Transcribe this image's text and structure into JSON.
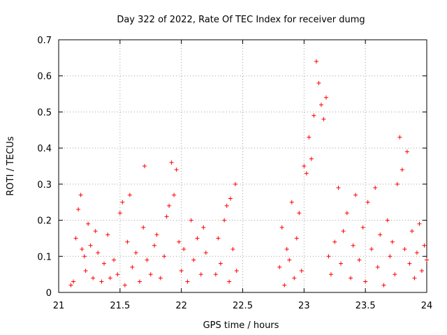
{
  "chart_data": {
    "type": "scatter",
    "title": "Day 322 of 2022, Rate Of TEC Index for receiver dumg",
    "xlabel": "GPS time / hours",
    "ylabel": "ROTI / TECUs",
    "xlim": [
      21,
      24
    ],
    "ylim": [
      0,
      0.7
    ],
    "xticks": [
      21,
      21.5,
      22,
      22.5,
      23,
      23.5,
      24
    ],
    "xtick_labels": [
      "21",
      "21.5",
      "22",
      "22.5",
      "23",
      "23.5",
      "24"
    ],
    "yticks": [
      0,
      0.1,
      0.2,
      0.3,
      0.4,
      0.5,
      0.6,
      0.7
    ],
    "ytick_labels": [
      "0",
      "0.1",
      "0.2",
      "0.3",
      "0.4",
      "0.5",
      "0.6",
      "0.7"
    ],
    "grid": true,
    "marker": "+",
    "color": "#ff0000",
    "series": [
      {
        "name": "ROTI",
        "points": [
          [
            21.1,
            0.02
          ],
          [
            21.12,
            0.03
          ],
          [
            21.14,
            0.15
          ],
          [
            21.16,
            0.23
          ],
          [
            21.18,
            0.27
          ],
          [
            21.19,
            0.12
          ],
          [
            21.21,
            0.1
          ],
          [
            21.22,
            0.06
          ],
          [
            21.24,
            0.19
          ],
          [
            21.26,
            0.13
          ],
          [
            21.28,
            0.04
          ],
          [
            21.3,
            0.17
          ],
          [
            21.32,
            0.11
          ],
          [
            21.35,
            0.03
          ],
          [
            21.37,
            0.08
          ],
          [
            21.4,
            0.16
          ],
          [
            21.42,
            0.04
          ],
          [
            21.45,
            0.09
          ],
          [
            21.48,
            0.05
          ],
          [
            21.5,
            0.22
          ],
          [
            21.52,
            0.25
          ],
          [
            21.54,
            0.02
          ],
          [
            21.56,
            0.14
          ],
          [
            21.58,
            0.27
          ],
          [
            21.6,
            0.07
          ],
          [
            21.63,
            0.11
          ],
          [
            21.66,
            0.03
          ],
          [
            21.69,
            0.18
          ],
          [
            21.7,
            0.35
          ],
          [
            21.72,
            0.09
          ],
          [
            21.75,
            0.05
          ],
          [
            21.78,
            0.13
          ],
          [
            21.8,
            0.16
          ],
          [
            21.83,
            0.04
          ],
          [
            21.86,
            0.1
          ],
          [
            21.88,
            0.21
          ],
          [
            21.9,
            0.24
          ],
          [
            21.92,
            0.36
          ],
          [
            21.94,
            0.27
          ],
          [
            21.96,
            0.34
          ],
          [
            21.98,
            0.14
          ],
          [
            22.0,
            0.06
          ],
          [
            22.02,
            0.12
          ],
          [
            22.05,
            0.03
          ],
          [
            22.08,
            0.2
          ],
          [
            22.1,
            0.09
          ],
          [
            22.13,
            0.15
          ],
          [
            22.16,
            0.05
          ],
          [
            22.18,
            0.18
          ],
          [
            22.2,
            0.11
          ],
          [
            22.28,
            0.05
          ],
          [
            22.3,
            0.15
          ],
          [
            22.32,
            0.08
          ],
          [
            22.35,
            0.2
          ],
          [
            22.37,
            0.24
          ],
          [
            22.39,
            0.03
          ],
          [
            22.4,
            0.26
          ],
          [
            22.42,
            0.12
          ],
          [
            22.44,
            0.3
          ],
          [
            22.45,
            0.06
          ],
          [
            22.8,
            0.07
          ],
          [
            22.82,
            0.18
          ],
          [
            22.84,
            0.02
          ],
          [
            22.86,
            0.12
          ],
          [
            22.88,
            0.09
          ],
          [
            22.9,
            0.25
          ],
          [
            22.92,
            0.04
          ],
          [
            22.94,
            0.15
          ],
          [
            22.96,
            0.22
          ],
          [
            22.98,
            0.06
          ],
          [
            23.0,
            0.35
          ],
          [
            23.02,
            0.33
          ],
          [
            23.04,
            0.43
          ],
          [
            23.06,
            0.37
          ],
          [
            23.08,
            0.49
          ],
          [
            23.1,
            0.64
          ],
          [
            23.12,
            0.58
          ],
          [
            23.14,
            0.52
          ],
          [
            23.16,
            0.48
          ],
          [
            23.18,
            0.54
          ],
          [
            23.2,
            0.1
          ],
          [
            23.22,
            0.05
          ],
          [
            23.25,
            0.14
          ],
          [
            23.28,
            0.29
          ],
          [
            23.3,
            0.08
          ],
          [
            23.32,
            0.17
          ],
          [
            23.35,
            0.22
          ],
          [
            23.38,
            0.04
          ],
          [
            23.4,
            0.13
          ],
          [
            23.42,
            0.27
          ],
          [
            23.45,
            0.09
          ],
          [
            23.48,
            0.18
          ],
          [
            23.5,
            0.03
          ],
          [
            23.52,
            0.25
          ],
          [
            23.55,
            0.12
          ],
          [
            23.58,
            0.29
          ],
          [
            23.6,
            0.07
          ],
          [
            23.62,
            0.16
          ],
          [
            23.65,
            0.02
          ],
          [
            23.68,
            0.2
          ],
          [
            23.7,
            0.1
          ],
          [
            23.72,
            0.14
          ],
          [
            23.74,
            0.05
          ],
          [
            23.76,
            0.3
          ],
          [
            23.78,
            0.43
          ],
          [
            23.8,
            0.34
          ],
          [
            23.82,
            0.12
          ],
          [
            23.84,
            0.39
          ],
          [
            23.86,
            0.08
          ],
          [
            23.88,
            0.17
          ],
          [
            23.9,
            0.04
          ],
          [
            23.92,
            0.11
          ],
          [
            23.94,
            0.19
          ],
          [
            23.96,
            0.06
          ],
          [
            23.98,
            0.13
          ],
          [
            24.0,
            0.09
          ]
        ]
      }
    ]
  }
}
